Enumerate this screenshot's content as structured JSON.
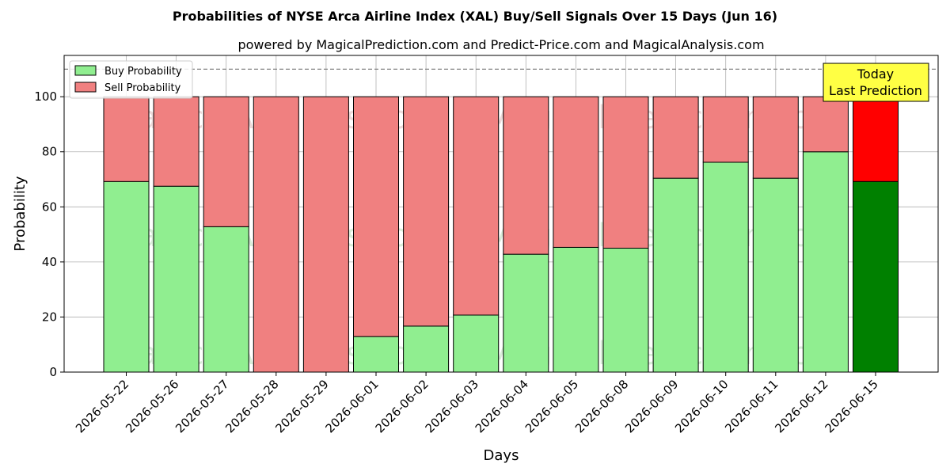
{
  "chart_data": {
    "type": "bar",
    "stacked": true,
    "title": "Probabilities of NYSE Arca Airline Index (XAL) Buy/Sell Signals Over 15 Days (Jun 16)",
    "subtitle": "powered by MagicalPrediction.com and Predict-Price.com and MagicalAnalysis.com",
    "xlabel": "Days",
    "ylabel": "Probability",
    "ylim": [
      0,
      115
    ],
    "yticks": [
      0,
      20,
      40,
      60,
      80,
      100
    ],
    "grid": true,
    "legend_placement": "top-left",
    "reference_line": 110,
    "categories": [
      "2026-05-22",
      "2026-05-26",
      "2026-05-27",
      "2026-05-28",
      "2026-05-29",
      "2026-06-01",
      "2026-06-02",
      "2026-06-03",
      "2026-06-04",
      "2026-06-05",
      "2026-06-08",
      "2026-06-09",
      "2026-06-10",
      "2026-06-11",
      "2026-06-12",
      "2026-06-15"
    ],
    "series": [
      {
        "name": "Buy Probability",
        "color": "#90ee90",
        "values": [
          69.2,
          67.5,
          52.8,
          0,
          0,
          12.9,
          16.7,
          20.7,
          42.8,
          45.3,
          45.0,
          70.4,
          76.2,
          70.4,
          80.0,
          69.2
        ]
      },
      {
        "name": "Sell Probability",
        "color": "#f08080",
        "values": [
          30.8,
          32.5,
          47.2,
          100,
          100,
          87.1,
          83.3,
          79.3,
          57.2,
          54.7,
          55.0,
          29.6,
          23.8,
          29.6,
          20.0,
          30.8
        ]
      }
    ],
    "highlight": {
      "index": 15,
      "buy_color": "#008000",
      "sell_color": "#ff0000"
    },
    "annotation": {
      "lines": [
        "Today",
        "Last Prediction"
      ],
      "background": "#ffff44"
    },
    "watermarks": [
      "MagicalAnalysis.com",
      "MagicalPrediction.com"
    ]
  }
}
